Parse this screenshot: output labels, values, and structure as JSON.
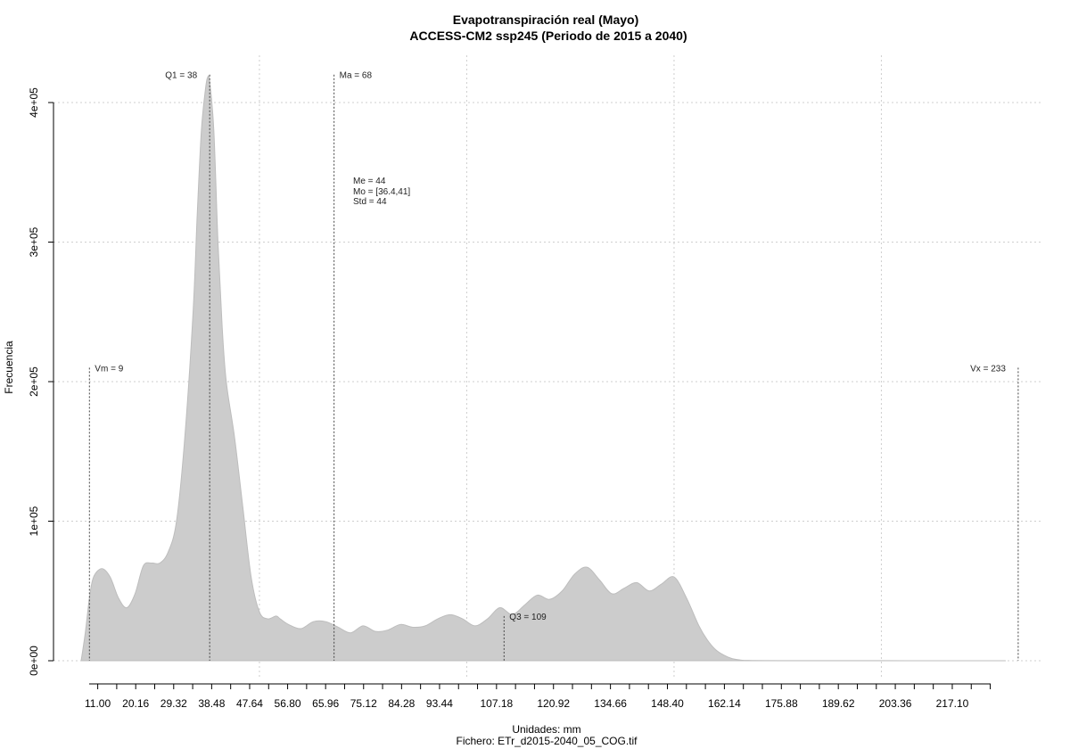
{
  "chart_data": {
    "type": "area",
    "title": "Evapotranspiración real (Mayo)",
    "subtitle": "ACCESS-CM2 ssp245 (Periodo de 2015 a 2040)",
    "xlabel": "Unidades: mm",
    "ylabel": "Frecuencia",
    "footer": "Fichero: ETr_d2015-2040_05_COG.tif",
    "grid": true,
    "xlim": [
      0,
      240
    ],
    "ylim": [
      0,
      420000
    ],
    "y_ticks": [
      0,
      100000,
      200000,
      300000,
      400000
    ],
    "y_tick_labels": [
      "0e+00",
      "1e+05",
      "2e+05",
      "3e+05",
      "4e+05"
    ],
    "x_label_ticks": [
      11.0,
      20.16,
      29.32,
      38.48,
      47.64,
      56.8,
      65.96,
      75.12,
      84.28,
      93.44,
      107.18,
      120.92,
      134.66,
      148.4,
      162.14,
      175.88,
      189.62,
      203.36,
      217.1
    ],
    "x_label_texts": [
      "11.00",
      "20.16",
      "29.32",
      "38.48",
      "47.64",
      "56.80",
      "65.96",
      "75.12",
      "84.28",
      "93.44",
      "107.18",
      "120.92",
      "134.66",
      "148.40",
      "162.14",
      "175.88",
      "189.62",
      "203.36",
      "217.10"
    ],
    "x_minor_step": 4.58,
    "x_minor_start": 11.0,
    "x_minor_end": 228.0,
    "x_grid": [
      50,
      100,
      150,
      200
    ],
    "density": {
      "x": [
        7,
        8,
        9,
        10,
        12,
        14,
        16,
        18,
        20,
        22,
        24,
        26,
        28,
        30,
        32,
        34,
        35,
        36,
        37,
        37.5,
        38,
        39,
        40,
        41,
        42,
        44,
        46,
        48,
        50,
        52,
        54,
        55,
        57,
        60,
        63,
        66,
        69,
        72,
        75,
        78,
        81,
        84,
        87,
        90,
        93,
        96,
        99,
        102,
        105,
        108,
        111,
        114,
        117,
        120,
        123,
        126,
        129,
        132,
        135,
        138,
        141,
        144,
        147,
        150,
        153,
        156,
        158,
        160,
        162,
        164,
        166,
        168,
        175,
        200,
        230
      ],
      "y": [
        0,
        20000,
        45000,
        60000,
        66000,
        60000,
        45000,
        38000,
        48000,
        68000,
        70000,
        70000,
        78000,
        100000,
        160000,
        250000,
        320000,
        380000,
        410000,
        418000,
        415000,
        380000,
        300000,
        240000,
        200000,
        160000,
        110000,
        60000,
        35000,
        30000,
        32000,
        30000,
        26000,
        23000,
        28000,
        28000,
        24000,
        20000,
        25000,
        21000,
        22000,
        26000,
        24000,
        25000,
        30000,
        33000,
        30000,
        25000,
        30000,
        38000,
        33000,
        40000,
        47000,
        44000,
        50000,
        62000,
        67000,
        58000,
        48000,
        52000,
        56000,
        50000,
        55000,
        60000,
        45000,
        25000,
        15000,
        8000,
        4000,
        1500,
        500,
        200,
        100,
        50,
        0
      ]
    },
    "markers": [
      {
        "label": "Vm = 9",
        "value": 9,
        "y": 210000,
        "anchor": "start"
      },
      {
        "label": "Q1 = 38",
        "value": 38,
        "y": 420000,
        "anchor": "end"
      },
      {
        "label": "Ma = 68",
        "value": 68,
        "y": 420000,
        "anchor": "start"
      },
      {
        "label": "Q3 = 109",
        "value": 109,
        "y": 32000,
        "anchor": "start"
      },
      {
        "label": "Vx = 233",
        "value": 233,
        "y": 210000,
        "anchor": "end"
      }
    ],
    "stats": [
      "Me = 44",
      "Mo = [36.4,41]",
      "Std = 44"
    ]
  }
}
